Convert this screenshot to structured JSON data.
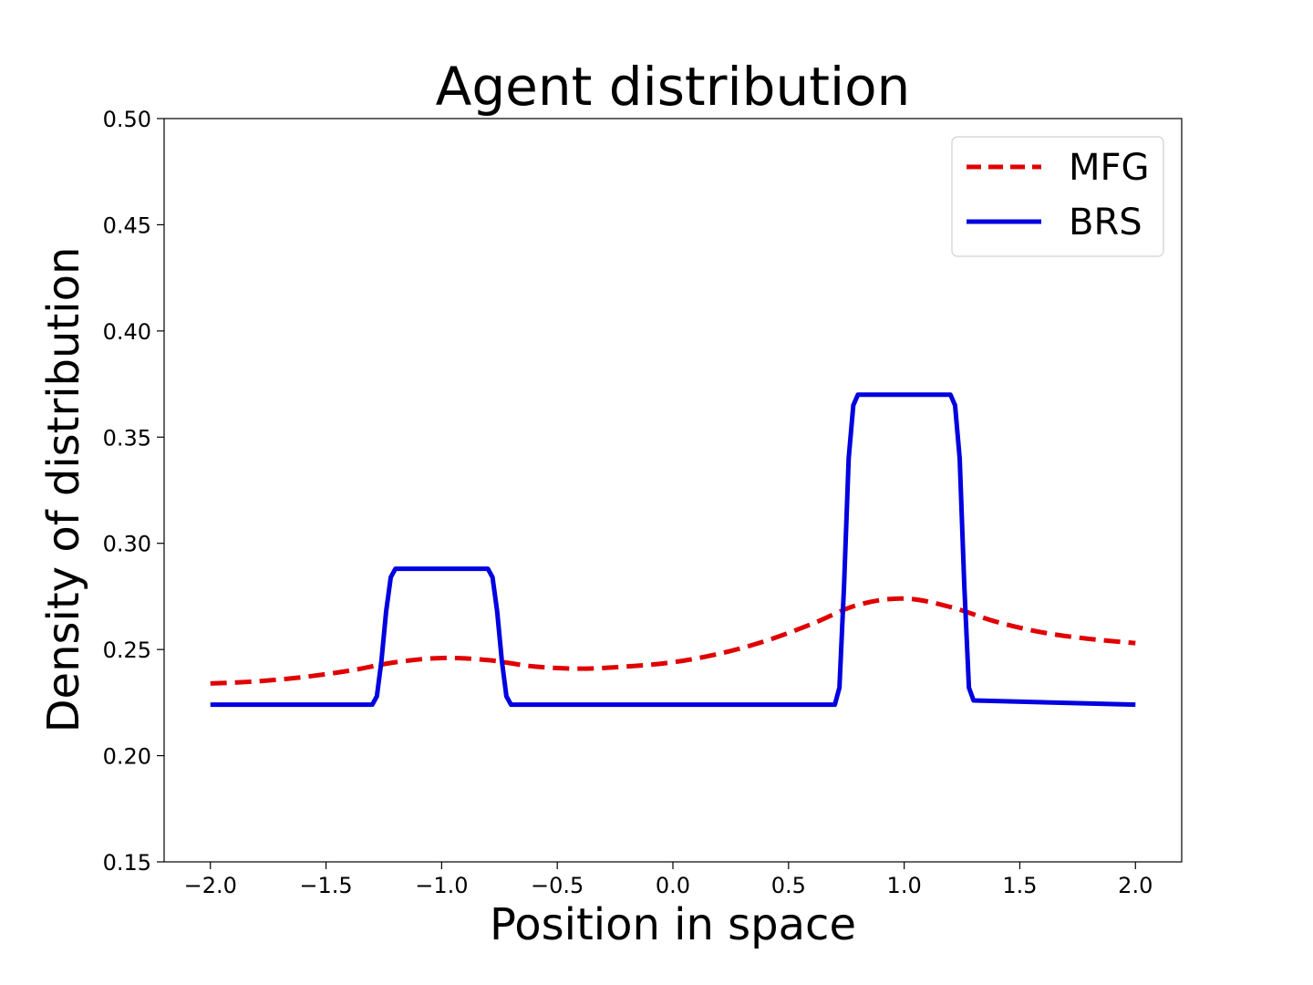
{
  "chart_data": {
    "type": "line",
    "title": "Agent distribution",
    "xlabel": "Position in space",
    "ylabel": "Density of distribution",
    "xlim": [
      -2.2,
      2.2
    ],
    "ylim": [
      0.15,
      0.5
    ],
    "xticks": [
      -2.0,
      -1.5,
      -1.0,
      -0.5,
      0.0,
      0.5,
      1.0,
      1.5,
      2.0
    ],
    "xtick_labels": [
      "−2.0",
      "−1.5",
      "−1.0",
      "−0.5",
      "0.0",
      "0.5",
      "1.0",
      "1.5",
      "2.0"
    ],
    "yticks": [
      0.15,
      0.2,
      0.25,
      0.3,
      0.35,
      0.4,
      0.45,
      0.5
    ],
    "ytick_labels": [
      "0.15",
      "0.20",
      "0.25",
      "0.30",
      "0.35",
      "0.40",
      "0.45",
      "0.50"
    ],
    "grid": false,
    "legend_position": "top-right",
    "series": [
      {
        "name": "MFG",
        "color": "#e00000",
        "style": "dashed",
        "x": [
          -2.0,
          -1.8,
          -1.6,
          -1.4,
          -1.2,
          -1.0,
          -0.8,
          -0.6,
          -0.4,
          -0.2,
          0.0,
          0.2,
          0.4,
          0.6,
          0.8,
          1.0,
          1.2,
          1.4,
          1.6,
          1.8,
          2.0
        ],
        "y": [
          0.234,
          0.235,
          0.237,
          0.24,
          0.244,
          0.246,
          0.245,
          0.242,
          0.241,
          0.242,
          0.244,
          0.248,
          0.254,
          0.262,
          0.271,
          0.274,
          0.27,
          0.263,
          0.258,
          0.255,
          0.253
        ]
      },
      {
        "name": "BRS",
        "color": "#0000e0",
        "style": "solid",
        "x": [
          -2.0,
          -1.3,
          -1.28,
          -1.26,
          -1.24,
          -1.22,
          -1.2,
          -0.8,
          -0.78,
          -0.76,
          -0.74,
          -0.72,
          -0.7,
          0.7,
          0.72,
          0.74,
          0.76,
          0.78,
          0.8,
          1.2,
          1.22,
          1.24,
          1.26,
          1.28,
          1.3,
          2.0
        ],
        "y": [
          0.224,
          0.224,
          0.228,
          0.245,
          0.268,
          0.284,
          0.288,
          0.288,
          0.284,
          0.268,
          0.245,
          0.228,
          0.224,
          0.224,
          0.232,
          0.28,
          0.34,
          0.365,
          0.37,
          0.37,
          0.365,
          0.34,
          0.28,
          0.232,
          0.226,
          0.224
        ]
      }
    ]
  }
}
